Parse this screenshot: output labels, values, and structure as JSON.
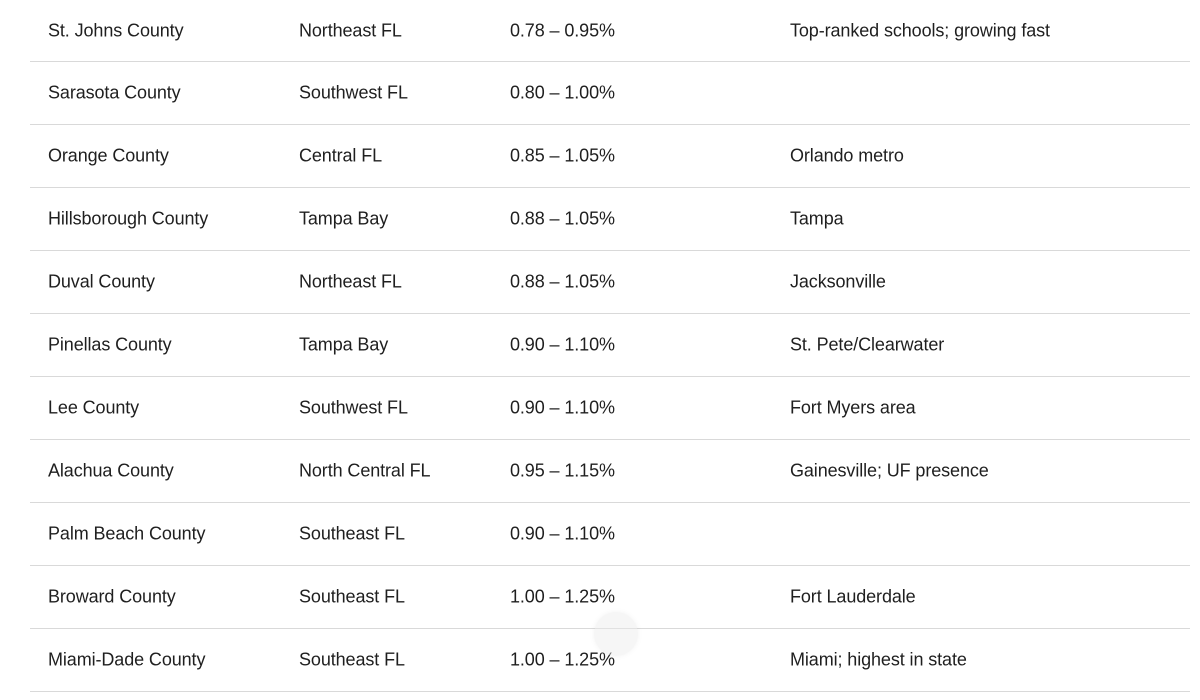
{
  "table": {
    "rows": [
      {
        "county": "St. Johns County",
        "region": "Northeast FL",
        "rate": "0.78 – 0.95%",
        "notes": "Top-ranked schools; growing fast"
      },
      {
        "county": "Sarasota County",
        "region": "Southwest FL",
        "rate": "0.80 – 1.00%",
        "notes": ""
      },
      {
        "county": "Orange County",
        "region": "Central FL",
        "rate": "0.85 – 1.05%",
        "notes": "Orlando metro"
      },
      {
        "county": "Hillsborough County",
        "region": "Tampa Bay",
        "rate": "0.88 – 1.05%",
        "notes": "Tampa"
      },
      {
        "county": "Duval County",
        "region": "Northeast FL",
        "rate": "0.88 – 1.05%",
        "notes": "Jacksonville"
      },
      {
        "county": "Pinellas County",
        "region": "Tampa Bay",
        "rate": "0.90 – 1.10%",
        "notes": "St. Pete/Clearwater"
      },
      {
        "county": "Lee County",
        "region": "Southwest FL",
        "rate": "0.90 – 1.10%",
        "notes": "Fort Myers area"
      },
      {
        "county": "Alachua County",
        "region": "North Central FL",
        "rate": "0.95 – 1.15%",
        "notes": "Gainesville; UF presence"
      },
      {
        "county": "Palm Beach County",
        "region": "Southeast FL",
        "rate": "0.90 – 1.10%",
        "notes": ""
      },
      {
        "county": "Broward County",
        "region": "Southeast FL",
        "rate": "1.00 – 1.25%",
        "notes": "Fort Lauderdale"
      },
      {
        "county": "Miami-Dade County",
        "region": "Southeast FL",
        "rate": "1.00 – 1.25%",
        "notes": "Miami; highest in state"
      }
    ]
  }
}
